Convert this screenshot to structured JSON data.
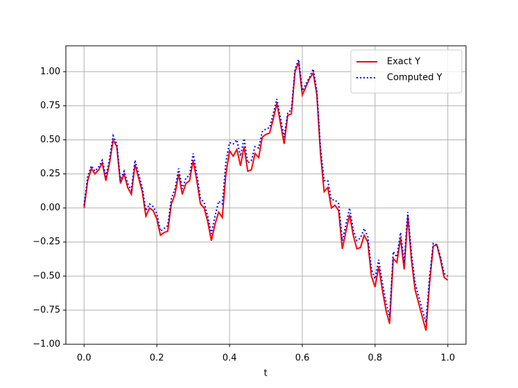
{
  "chart_data": {
    "type": "line",
    "xlabel": "t",
    "x": [
      0,
      0.01,
      0.02,
      0.03,
      0.04,
      0.05,
      0.06,
      0.07,
      0.08,
      0.09,
      0.1,
      0.11,
      0.12,
      0.13,
      0.14,
      0.15,
      0.16,
      0.17,
      0.18,
      0.19,
      0.2,
      0.21,
      0.22,
      0.23,
      0.24,
      0.25,
      0.26,
      0.27,
      0.28,
      0.29,
      0.3,
      0.31,
      0.32,
      0.33,
      0.34,
      0.35,
      0.36,
      0.37,
      0.38,
      0.39,
      0.4,
      0.41,
      0.42,
      0.43,
      0.44,
      0.45,
      0.46,
      0.47,
      0.48,
      0.49,
      0.5,
      0.51,
      0.52,
      0.53,
      0.54,
      0.55,
      0.56,
      0.57,
      0.58,
      0.59,
      0.6,
      0.61,
      0.62,
      0.63,
      0.64,
      0.65,
      0.66,
      0.67,
      0.68,
      0.69,
      0.7,
      0.71,
      0.72,
      0.73,
      0.74,
      0.75,
      0.76,
      0.77,
      0.78,
      0.79,
      0.8,
      0.81,
      0.82,
      0.83,
      0.84,
      0.85,
      0.86,
      0.87,
      0.88,
      0.89,
      0.9,
      0.91,
      0.92,
      0.93,
      0.94,
      0.95,
      0.96,
      0.97,
      0.98,
      0.99,
      1
    ],
    "series": [
      {
        "name": "Exact Y",
        "color": "#ff0000",
        "style": "solid",
        "values": [
          0,
          0.2,
          0.29,
          0.25,
          0.28,
          0.33,
          0.2,
          0.33,
          0.5,
          0.45,
          0.18,
          0.25,
          0.15,
          0.1,
          0.32,
          0.22,
          0.12,
          -0.06,
          0,
          -0.02,
          -0.08,
          -0.2,
          -0.18,
          -0.17,
          0.03,
          0.1,
          0.25,
          0.1,
          0.18,
          0.2,
          0.35,
          0.2,
          0.03,
          0,
          -0.1,
          -0.24,
          -0.12,
          -0.03,
          -0.07,
          0.25,
          0.42,
          0.38,
          0.43,
          0.31,
          0.45,
          0.27,
          0.28,
          0.4,
          0.37,
          0.52,
          0.54,
          0.55,
          0.65,
          0.77,
          0.62,
          0.47,
          0.68,
          0.69,
          1,
          1.07,
          0.83,
          0.89,
          0.95,
          0.99,
          0.83,
          0.4,
          0.12,
          0.15,
          0,
          0.02,
          -0.02,
          -0.3,
          -0.17,
          -0.05,
          -0.2,
          -0.3,
          -0.29,
          -0.2,
          -0.25,
          -0.5,
          -0.58,
          -0.43,
          -0.6,
          -0.75,
          -0.85,
          -0.37,
          -0.4,
          -0.22,
          -0.45,
          -0.06,
          -0.38,
          -0.6,
          -0.7,
          -0.8,
          -0.9,
          -0.55,
          -0.28,
          -0.27,
          -0.38,
          -0.51,
          -0.53
        ]
      },
      {
        "name": "Computed Y",
        "color": "#0000ff",
        "style": "dotted",
        "values": [
          0.02,
          0.23,
          0.31,
          0.27,
          0.3,
          0.35,
          0.23,
          0.36,
          0.53,
          0.47,
          0.2,
          0.27,
          0.18,
          0.13,
          0.35,
          0.25,
          0.15,
          -0.02,
          0.03,
          0.01,
          -0.04,
          -0.17,
          -0.15,
          -0.13,
          0.07,
          0.14,
          0.29,
          0.14,
          0.22,
          0.24,
          0.4,
          0.25,
          0.07,
          0.04,
          -0.06,
          -0.19,
          -0.06,
          0.05,
          0.03,
          0.34,
          0.48,
          0.47,
          0.5,
          0.38,
          0.51,
          0.33,
          0.35,
          0.45,
          0.44,
          0.56,
          0.58,
          0.59,
          0.69,
          0.8,
          0.66,
          0.52,
          0.7,
          0.72,
          1.02,
          1.09,
          0.86,
          0.91,
          0.96,
          1.02,
          0.86,
          0.44,
          0.2,
          0.2,
          0.06,
          0.06,
          0.03,
          -0.24,
          -0.12,
          0,
          -0.16,
          -0.24,
          -0.22,
          -0.15,
          -0.21,
          -0.45,
          -0.52,
          -0.38,
          -0.55,
          -0.69,
          -0.8,
          -0.32,
          -0.36,
          -0.18,
          -0.4,
          -0.03,
          -0.33,
          -0.55,
          -0.65,
          -0.75,
          -0.84,
          -0.5,
          -0.26,
          -0.27,
          -0.36,
          -0.48,
          -0.5
        ]
      }
    ],
    "xlim": [
      -0.05,
      1.05
    ],
    "ylim": [
      -1.0,
      1.19
    ],
    "xticks": [
      {
        "value": 0,
        "label": "0.0"
      },
      0.2,
      0.4,
      0.6,
      0.8,
      {
        "value": 1,
        "label": "1.0"
      }
    ],
    "yticks": [
      {
        "value": -1,
        "label": "−1.00"
      },
      {
        "value": -0.75,
        "label": "−0.75"
      },
      {
        "value": -0.5,
        "label": "−0.50"
      },
      {
        "value": -0.25,
        "label": "−0.25"
      },
      {
        "value": 0,
        "label": "0.00"
      },
      {
        "value": 0.25,
        "label": "0.25"
      },
      {
        "value": 0.5,
        "label": "0.50"
      },
      {
        "value": 0.75,
        "label": "0.75"
      },
      {
        "value": 1,
        "label": "1.00"
      }
    ],
    "grid": true,
    "legend": "upper right"
  }
}
